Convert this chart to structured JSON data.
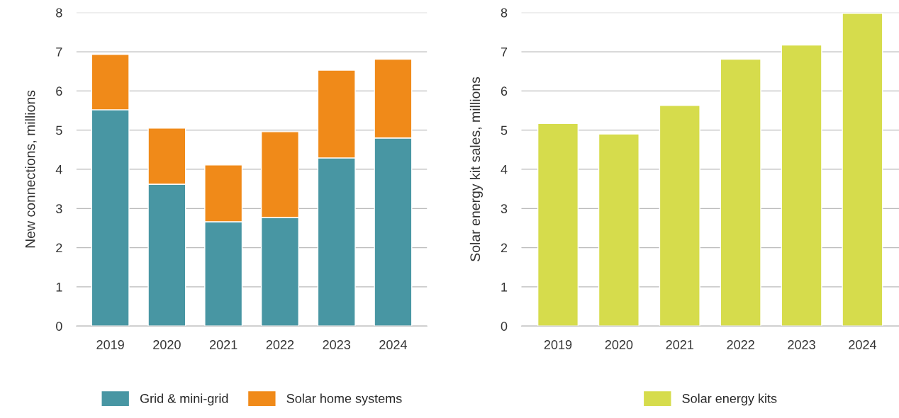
{
  "chart_data": [
    {
      "type": "bar",
      "stacked": true,
      "ylabel": "New connections, millions",
      "categories": [
        "2019",
        "2020",
        "2021",
        "2022",
        "2023",
        "2024"
      ],
      "series": [
        {
          "name": "Grid & mini-grid",
          "color": "#4896a3",
          "values": [
            5.52,
            3.62,
            2.66,
            2.77,
            4.29,
            4.8
          ]
        },
        {
          "name": "Solar home systems",
          "color": "#f08a19",
          "values": [
            1.41,
            1.43,
            1.45,
            2.19,
            2.24,
            2.01
          ]
        }
      ],
      "ylim": [
        0,
        8
      ],
      "yticks": [
        0,
        1,
        2,
        3,
        4,
        5,
        6,
        7,
        8
      ],
      "grid": "y",
      "legend": "bottom"
    },
    {
      "type": "bar",
      "ylabel": "Solar energy kit sales, millions",
      "categories": [
        "2019",
        "2020",
        "2021",
        "2022",
        "2023",
        "2024"
      ],
      "series": [
        {
          "name": "Solar energy kits",
          "color": "#d6dc4c",
          "values": [
            5.17,
            4.9,
            5.63,
            6.81,
            7.17,
            7.98
          ]
        }
      ],
      "ylim": [
        0,
        8
      ],
      "yticks": [
        0,
        1,
        2,
        3,
        4,
        5,
        6,
        7,
        8
      ],
      "grid": "y",
      "legend": "bottom"
    }
  ]
}
